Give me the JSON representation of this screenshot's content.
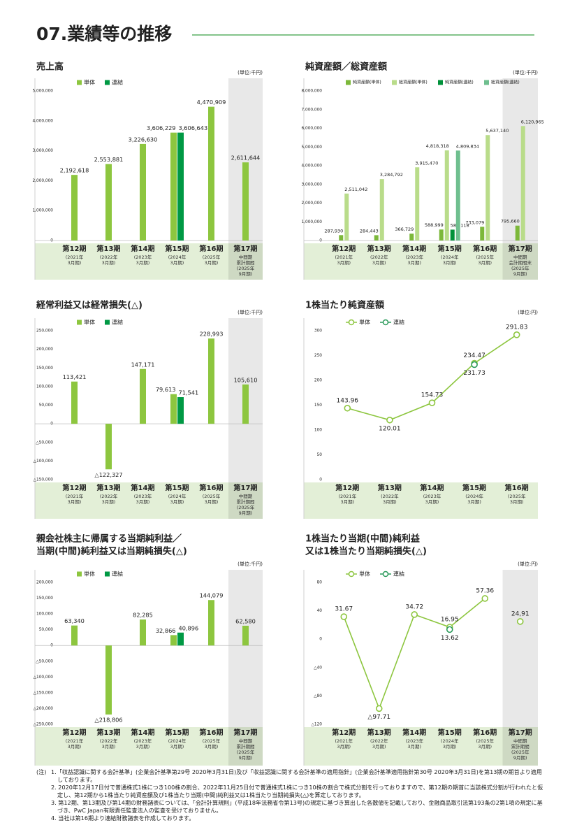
{
  "page_title": "07.業績等の推移",
  "chart_data": [
    {
      "type": "bar",
      "title": [
        "売上高"
      ],
      "unit": "(単位:千円)",
      "categories": [
        "第12期",
        "第13期",
        "第14期",
        "第15期",
        "第16期",
        "第17期"
      ],
      "category_notes": [
        "(2021年 3月期)",
        "(2022年 3月期)",
        "(2023年 3月期)",
        "(2024年 3月期)",
        "(2025年 3月期)",
        "中間期 累計期間 (2025年 9月期)"
      ],
      "series": [
        {
          "name": "単体",
          "color": "#8dc63f",
          "values": [
            2192618,
            2553881,
            3226630,
            3606229,
            4470909,
            2611644
          ],
          "value_labels": [
            "2,192,618",
            "2,553,881",
            "3,226,630",
            "3,606,229",
            "4,470,909",
            "2,611,644"
          ]
        },
        {
          "name": "連結",
          "color": "#009944",
          "values": [
            null,
            null,
            null,
            3606643,
            null,
            null
          ],
          "value_labels": [
            null,
            null,
            null,
            "3,606,643",
            null,
            null
          ]
        }
      ],
      "ylim": [
        0,
        5000000
      ],
      "yticks": [
        0,
        {
          "value": 1000000,
          "label": "1,000,000"
        },
        {
          "value": 2000000,
          "label": "2,000,000"
        },
        {
          "value": 3000000,
          "label": "3,000,000"
        },
        {
          "value": 4000000,
          "label": "4,000,000"
        },
        {
          "value": 5000000,
          "label": "5,000,000"
        }
      ],
      "grid": false,
      "legend": "top-left",
      "shaded_last": true
    },
    {
      "type": "bar",
      "title": [
        "純資産額／総資産額"
      ],
      "unit": "(単位:千円)",
      "categories": [
        "第12期",
        "第13期",
        "第14期",
        "第15期",
        "第16期",
        "第17期"
      ],
      "category_notes": [
        "(2021年 3月期)",
        "(2022年 3月期)",
        "(2023年 3月期)",
        "(2024年 3月期)",
        "(2025年 3月期)",
        "中間期 会計期間末 (2025年 9月期)"
      ],
      "series": [
        {
          "name": "純資産額(単体)",
          "color": "#7cb83a",
          "values": [
            287930,
            284443,
            366729,
            588999,
            733079,
            795660
          ],
          "value_labels": [
            "287,930",
            "284,443",
            "366,729",
            "588,999",
            "733,079",
            "795,660"
          ]
        },
        {
          "name": "総資産額(単体)",
          "color": "#b9dc8a",
          "values": [
            2511042,
            3284792,
            3915470,
            4818318,
            5637140,
            6120965
          ],
          "value_labels": [
            "2,511,042",
            "3,284,792",
            "3,915,470",
            "4,818,318",
            "5,637,140",
            "6,120,965"
          ]
        },
        {
          "name": "純資産額(連結)",
          "color": "#00913a",
          "values": [
            null,
            null,
            null,
            582118,
            null,
            null
          ],
          "value_labels": [
            null,
            null,
            null,
            "582,118",
            null,
            null
          ]
        },
        {
          "name": "総資産額(連結)",
          "color": "#6fbf8f",
          "values": [
            null,
            null,
            null,
            4809834,
            null,
            null
          ],
          "value_labels": [
            null,
            null,
            null,
            "4,809,834",
            null,
            null
          ]
        }
      ],
      "ylim": [
        0,
        8000000
      ],
      "yticks": [
        0,
        {
          "value": 1000000,
          "label": "1,000,000"
        },
        {
          "value": 2000000,
          "label": "2,000,000"
        },
        {
          "value": 3000000,
          "label": "3,000,000"
        },
        {
          "value": 4000000,
          "label": "4,000,000"
        },
        {
          "value": 5000000,
          "label": "5,000,000"
        },
        {
          "value": 6000000,
          "label": "6,000,000"
        },
        {
          "value": 7000000,
          "label": "7,000,000"
        },
        {
          "value": 8000000,
          "label": "8,000,000"
        }
      ],
      "grid": false,
      "legend": "top-left",
      "shaded_last": true
    },
    {
      "type": "bar",
      "title": [
        "経常利益又は経常損失(△)"
      ],
      "unit": "(単位:千円)",
      "categories": [
        "第12期",
        "第13期",
        "第14期",
        "第15期",
        "第16期",
        "第17期"
      ],
      "category_notes": [
        "(2021年 3月期)",
        "(2022年 3月期)",
        "(2023年 3月期)",
        "(2024年 3月期)",
        "(2025年 3月期)",
        "中間期 累計期間 (2025年 9月期)"
      ],
      "series": [
        {
          "name": "単体",
          "color": "#8dc63f",
          "values": [
            113421,
            -122327,
            147171,
            79613,
            228993,
            105610
          ],
          "value_labels": [
            "113,421",
            "△122,327",
            "147,171",
            "79,613",
            "228,993",
            "105,610"
          ]
        },
        {
          "name": "連結",
          "color": "#009944",
          "values": [
            null,
            null,
            null,
            71541,
            null,
            null
          ],
          "value_labels": [
            null,
            null,
            null,
            "71,541",
            null,
            null
          ]
        }
      ],
      "ylim": [
        -150000,
        250000
      ],
      "yticks": [
        {
          "value": -150000,
          "label": "△150,000"
        },
        {
          "value": -100000,
          "label": "△100,000"
        },
        {
          "value": -50000,
          "label": "△50,000"
        },
        0,
        {
          "value": 50000,
          "label": "50,000"
        },
        {
          "value": 100000,
          "label": "100,000"
        },
        {
          "value": 150000,
          "label": "150,000"
        },
        {
          "value": 200000,
          "label": "200,000"
        },
        {
          "value": 250000,
          "label": "250,000"
        }
      ],
      "grid": false,
      "legend": "top-left",
      "shaded_last": true
    },
    {
      "type": "line",
      "title": [
        "1株当たり純資産額"
      ],
      "unit": "(単位:円)",
      "categories": [
        "第12期",
        "第13期",
        "第14期",
        "第15期",
        "第16期"
      ],
      "category_notes": [
        "(2021年 3月期)",
        "(2022年 3月期)",
        "(2023年 3月期)",
        "(2024年 3月期)",
        "(2025年 3月期)"
      ],
      "series": [
        {
          "name": "単体",
          "color": "#8dc63f",
          "values": [
            143.96,
            120.01,
            154.73,
            234.47,
            291.83
          ]
        },
        {
          "name": "連結",
          "color": "#2a9a5a",
          "values": [
            null,
            null,
            null,
            231.73,
            null
          ]
        }
      ],
      "ylim": [
        0,
        300
      ],
      "yticks": [
        0,
        50,
        100,
        150,
        200,
        250,
        300
      ],
      "grid": false,
      "legend": "top-left",
      "shaded_last": false
    },
    {
      "type": "bar",
      "title": [
        "親会社株主に帰属する当期純利益／",
        "当期(中間)純利益又は当期純損失(△)"
      ],
      "unit": "(単位:千円)",
      "categories": [
        "第12期",
        "第13期",
        "第14期",
        "第15期",
        "第16期",
        "第17期"
      ],
      "category_notes": [
        "(2021年 3月期)",
        "(2022年 3月期)",
        "(2023年 3月期)",
        "(2024年 3月期)",
        "(2025年 3月期)",
        "中間期 累計期間 (2025年 9月期)"
      ],
      "series": [
        {
          "name": "単体",
          "color": "#8dc63f",
          "values": [
            63340,
            -218806,
            82285,
            32866,
            144079,
            62580
          ],
          "value_labels": [
            "63,340",
            "△218,806",
            "82,285",
            "32,866",
            "144,079",
            "62,580"
          ]
        },
        {
          "name": "連結",
          "color": "#009944",
          "values": [
            null,
            null,
            null,
            40896,
            null,
            null
          ],
          "value_labels": [
            null,
            null,
            null,
            "40,896",
            null,
            null
          ]
        }
      ],
      "ylim": [
        -250000,
        200000
      ],
      "yticks": [
        {
          "value": -250000,
          "label": "△250,000"
        },
        {
          "value": -200000,
          "label": "△200,000"
        },
        {
          "value": -150000,
          "label": "△150,000"
        },
        {
          "value": -100000,
          "label": "△100,000"
        },
        {
          "value": -50000,
          "label": "△50,000"
        },
        0,
        {
          "value": 50000,
          "label": "50,000"
        },
        {
          "value": 100000,
          "label": "100,000"
        },
        {
          "value": 150000,
          "label": "150,000"
        },
        {
          "value": 200000,
          "label": "200,000"
        }
      ],
      "grid": false,
      "legend": "top-left",
      "shaded_last": true
    },
    {
      "type": "line",
      "title": [
        "1株当たり当期(中間)純利益",
        "又は1株当たり当期純損失(△)"
      ],
      "unit": "(単位:円)",
      "categories": [
        "第12期",
        "第13期",
        "第14期",
        "第15期",
        "第16期",
        "第17期"
      ],
      "category_notes": [
        "(2021年 3月期)",
        "(2022年 3月期)",
        "(2023年 3月期)",
        "(2024年 3月期)",
        "(2025年 3月期)",
        "中間期 累計期間 (2025年 9月期)"
      ],
      "series": [
        {
          "name": "単体",
          "color": "#8dc63f",
          "values": [
            31.67,
            -97.71,
            34.72,
            16.95,
            57.36,
            24.91
          ],
          "value_labels": [
            "31.67",
            "△97.71",
            "34.72",
            "16.95",
            "57.36",
            "24,91"
          ]
        },
        {
          "name": "連結",
          "color": "#2a9a5a",
          "values": [
            null,
            null,
            null,
            13.62,
            null,
            null
          ],
          "value_labels": [
            null,
            null,
            null,
            "13.62",
            null,
            null
          ]
        }
      ],
      "ylim": [
        -120,
        80
      ],
      "yticks": [
        {
          "value": -120,
          "label": "△120"
        },
        {
          "value": -80,
          "label": "△80"
        },
        {
          "value": -40,
          "label": "△40"
        },
        0,
        40,
        80
      ],
      "grid": false,
      "legend": "top-left",
      "shaded_last": true
    }
  ],
  "notes_label": "(注)",
  "notes": [
    "1.「収益認識に関する会計基準」(企業会計基準第29号 2020年3月31日)及び「収益認識に関する会計基準の適用指針」(企業会計基準適用指針第30号 2020年3月31日)を第13期の期首より適用しております。",
    "2. 2020年12月17日付で普通株式1株につき100株の割合、2022年11月25日付で普通株式1株につき10株の割合で株式分割を行っておりますので、第12期の期首に当該株式分割が行われたと仮定し、第12期から1株当たり純資産額及び1株当たり当期(中間)純利益又は1株当たり当期純損失(△)を算定しております。",
    "3. 第12期、第13期及び第14期の財務諸表については、「会計計算規則」(平成18年法務省令第13号)の規定に基づき算出した各数値を記載しており、金融商品取引法第193条の2第1項の規定に基づき、PwC Japan有限責任監査法人の監査を受けておりません。",
    "4. 当社は第16期より連結財務諸表を作成しております。"
  ]
}
